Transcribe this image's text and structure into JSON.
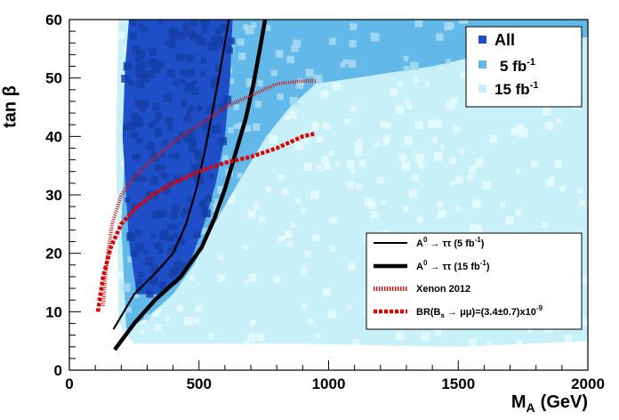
{
  "chart_data": {
    "type": "scatter",
    "xlabel_base": "M",
    "xlabel_sub": "A",
    "xlabel_unit": "(GeV)",
    "ylabel": "tan β",
    "xlim": [
      0,
      2000
    ],
    "ylim": [
      0,
      60
    ],
    "x_ticks": [
      0,
      500,
      1000,
      1500,
      2000
    ],
    "y_ticks": [
      0,
      10,
      20,
      30,
      40,
      50,
      60
    ],
    "grid": false,
    "colors": {
      "all": "#1f4fc8",
      "fb5": "#63b8ea",
      "fb15": "#c8f0f8",
      "curve": "#000000",
      "xenon": "#d21414",
      "bs": "#e00000"
    },
    "legend_top": {
      "placement": "top-right",
      "entries": [
        {
          "label": "All",
          "sup": "",
          "color": "#1f4fc8"
        },
        {
          "label": "5 fb",
          "sup": "-1",
          "color": "#63b8ea"
        },
        {
          "label": "15 fb",
          "sup": "-1",
          "color": "#c8f0f8"
        }
      ]
    },
    "legend_bottom": {
      "placement": "bottom-right",
      "entries": [
        {
          "label": "A",
          "sup": "0",
          "mid": " → ττ (5 fb",
          "sup2": "-1",
          "end": ")",
          "style": "thin"
        },
        {
          "label": "A",
          "sup": "0",
          "mid": " → ττ (15 fb",
          "sup2": "-1",
          "end": ")",
          "style": "thick"
        },
        {
          "label": "Xenon 2012",
          "sup": "",
          "mid": "",
          "sup2": "",
          "end": "",
          "style": "xenon"
        },
        {
          "label": "BR(B",
          "sub": "s",
          "mid": " → μμ)=(3.4±0.7)x10",
          "sup2": "-9",
          "end": "",
          "style": "bs"
        }
      ]
    },
    "regions": {
      "fb15": [
        [
          190,
          60
        ],
        [
          2000,
          60
        ],
        [
          2000,
          5
        ],
        [
          1500,
          4
        ],
        [
          900,
          4.5
        ],
        [
          250,
          4.5
        ],
        [
          190,
          8
        ],
        [
          180,
          40
        ]
      ],
      "fb5": [
        [
          380,
          60
        ],
        [
          2000,
          60
        ],
        [
          2000,
          57
        ],
        [
          1700,
          55
        ],
        [
          1400,
          52
        ],
        [
          1100,
          50
        ],
        [
          950,
          49
        ],
        [
          850,
          45
        ],
        [
          760,
          40
        ],
        [
          650,
          32
        ],
        [
          560,
          25
        ],
        [
          480,
          18
        ],
        [
          400,
          13
        ],
        [
          300,
          9
        ],
        [
          220,
          7
        ],
        [
          200,
          25
        ],
        [
          230,
          50
        ]
      ],
      "all": [
        [
          230,
          60
        ],
        [
          630,
          60
        ],
        [
          620,
          50
        ],
        [
          600,
          40
        ],
        [
          565,
          32
        ],
        [
          520,
          25
        ],
        [
          470,
          19
        ],
        [
          420,
          15
        ],
        [
          360,
          13
        ],
        [
          260,
          13
        ],
        [
          230,
          22
        ],
        [
          205,
          40
        ],
        [
          215,
          52
        ]
      ]
    },
    "series": [
      {
        "name": "A0 → ττ (5 fb-1)",
        "style": "thin",
        "x": [
          170,
          250,
          340,
          400,
          450,
          490,
          525,
          555,
          580,
          600,
          615
        ],
        "y": [
          7,
          13,
          17,
          20,
          25,
          31,
          38,
          45,
          51,
          56,
          60
        ]
      },
      {
        "name": "A0 → ττ (15 fb-1)",
        "style": "thick",
        "x": [
          175,
          250,
          330,
          430,
          510,
          560,
          600,
          640,
          680,
          710,
          735,
          755
        ],
        "y": [
          3.5,
          8,
          12,
          16,
          21,
          26,
          31,
          37,
          43,
          49,
          55,
          60
        ]
      },
      {
        "name": "Xenon 2012",
        "style": "xenon",
        "x": [
          130,
          145,
          165,
          200,
          250,
          320,
          400,
          500,
          600,
          700,
          800,
          900,
          950
        ],
        "y": [
          11,
          19,
          25,
          30,
          33,
          36,
          39,
          42,
          45,
          47,
          49,
          49.5,
          49.5
        ]
      },
      {
        "name": "BR(Bs → μμ)=(3.4±0.7)x10-9",
        "style": "bs",
        "x": [
          110,
          130,
          160,
          200,
          250,
          320,
          400,
          500,
          600,
          700,
          800,
          900,
          950
        ],
        "y": [
          10,
          16,
          21,
          25,
          27.5,
          30,
          32,
          34,
          35.5,
          36.5,
          38,
          40,
          40.5
        ]
      }
    ]
  }
}
